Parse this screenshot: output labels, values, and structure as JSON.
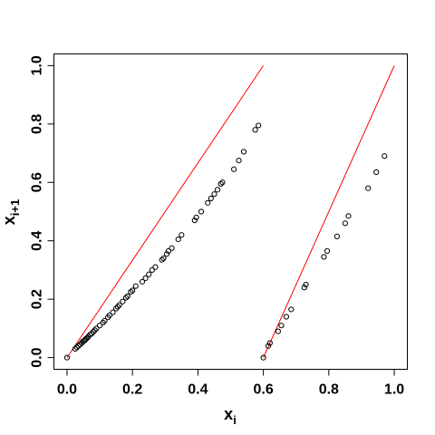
{
  "chart_data": {
    "type": "scatter",
    "title": "",
    "xlabel": "x",
    "xlabel_sub": "i",
    "ylabel": "x",
    "ylabel_sub": "i+1",
    "xlim": [
      -0.04,
      1.04
    ],
    "ylim": [
      -0.04,
      1.04
    ],
    "x_ticks": [
      0.0,
      0.2,
      0.4,
      0.6,
      0.8,
      1.0
    ],
    "x_tick_labels": [
      "0.0",
      "0.2",
      "0.4",
      "0.6",
      "0.8",
      "1.0"
    ],
    "y_ticks": [
      0.0,
      0.2,
      0.4,
      0.6,
      0.8,
      1.0
    ],
    "y_tick_labels": [
      "0.0",
      "0.2",
      "0.4",
      "0.6",
      "0.8",
      "1.0"
    ],
    "grid": false,
    "legend": "none",
    "colors": {
      "points": "#000000",
      "lines": "#ff0000",
      "axes": "#000000"
    },
    "series": [
      {
        "marker": "open-circle",
        "x": [
          0.0,
          0.025,
          0.03,
          0.035,
          0.04,
          0.045,
          0.048,
          0.052,
          0.055,
          0.058,
          0.062,
          0.065,
          0.07,
          0.075,
          0.08,
          0.085,
          0.09,
          0.1,
          0.11,
          0.115,
          0.125,
          0.13,
          0.14,
          0.15,
          0.155,
          0.16,
          0.17,
          0.18,
          0.185,
          0.195,
          0.2,
          0.21,
          0.23,
          0.24,
          0.25,
          0.26,
          0.27,
          0.29,
          0.295,
          0.305,
          0.31,
          0.32,
          0.34,
          0.35,
          0.39,
          0.395,
          0.41,
          0.43,
          0.44,
          0.45,
          0.46,
          0.47,
          0.475,
          0.51,
          0.525,
          0.54,
          0.575,
          0.585,
          0.6,
          0.615,
          0.62,
          0.645,
          0.655,
          0.67,
          0.685,
          0.725,
          0.73,
          0.785,
          0.795,
          0.825,
          0.85,
          0.86,
          0.92,
          0.945,
          0.97
        ],
        "y": [
          0.0,
          0.03,
          0.035,
          0.04,
          0.045,
          0.05,
          0.055,
          0.058,
          0.06,
          0.064,
          0.068,
          0.072,
          0.078,
          0.082,
          0.088,
          0.094,
          0.1,
          0.11,
          0.12,
          0.126,
          0.138,
          0.145,
          0.155,
          0.168,
          0.174,
          0.18,
          0.192,
          0.205,
          0.21,
          0.225,
          0.23,
          0.245,
          0.26,
          0.272,
          0.285,
          0.3,
          0.31,
          0.335,
          0.34,
          0.355,
          0.365,
          0.375,
          0.405,
          0.42,
          0.47,
          0.48,
          0.5,
          0.53,
          0.545,
          0.56,
          0.575,
          0.595,
          0.6,
          0.645,
          0.675,
          0.705,
          0.78,
          0.795,
          0.0,
          0.04,
          0.05,
          0.09,
          0.11,
          0.14,
          0.165,
          0.24,
          0.25,
          0.345,
          0.365,
          0.415,
          0.46,
          0.485,
          0.58,
          0.635,
          0.69
        ]
      }
    ],
    "lines": [
      {
        "x": [
          0.0,
          0.6
        ],
        "y": [
          0.0,
          1.0
        ]
      },
      {
        "x": [
          0.6,
          1.0
        ],
        "y": [
          0.0,
          1.0
        ]
      }
    ]
  }
}
